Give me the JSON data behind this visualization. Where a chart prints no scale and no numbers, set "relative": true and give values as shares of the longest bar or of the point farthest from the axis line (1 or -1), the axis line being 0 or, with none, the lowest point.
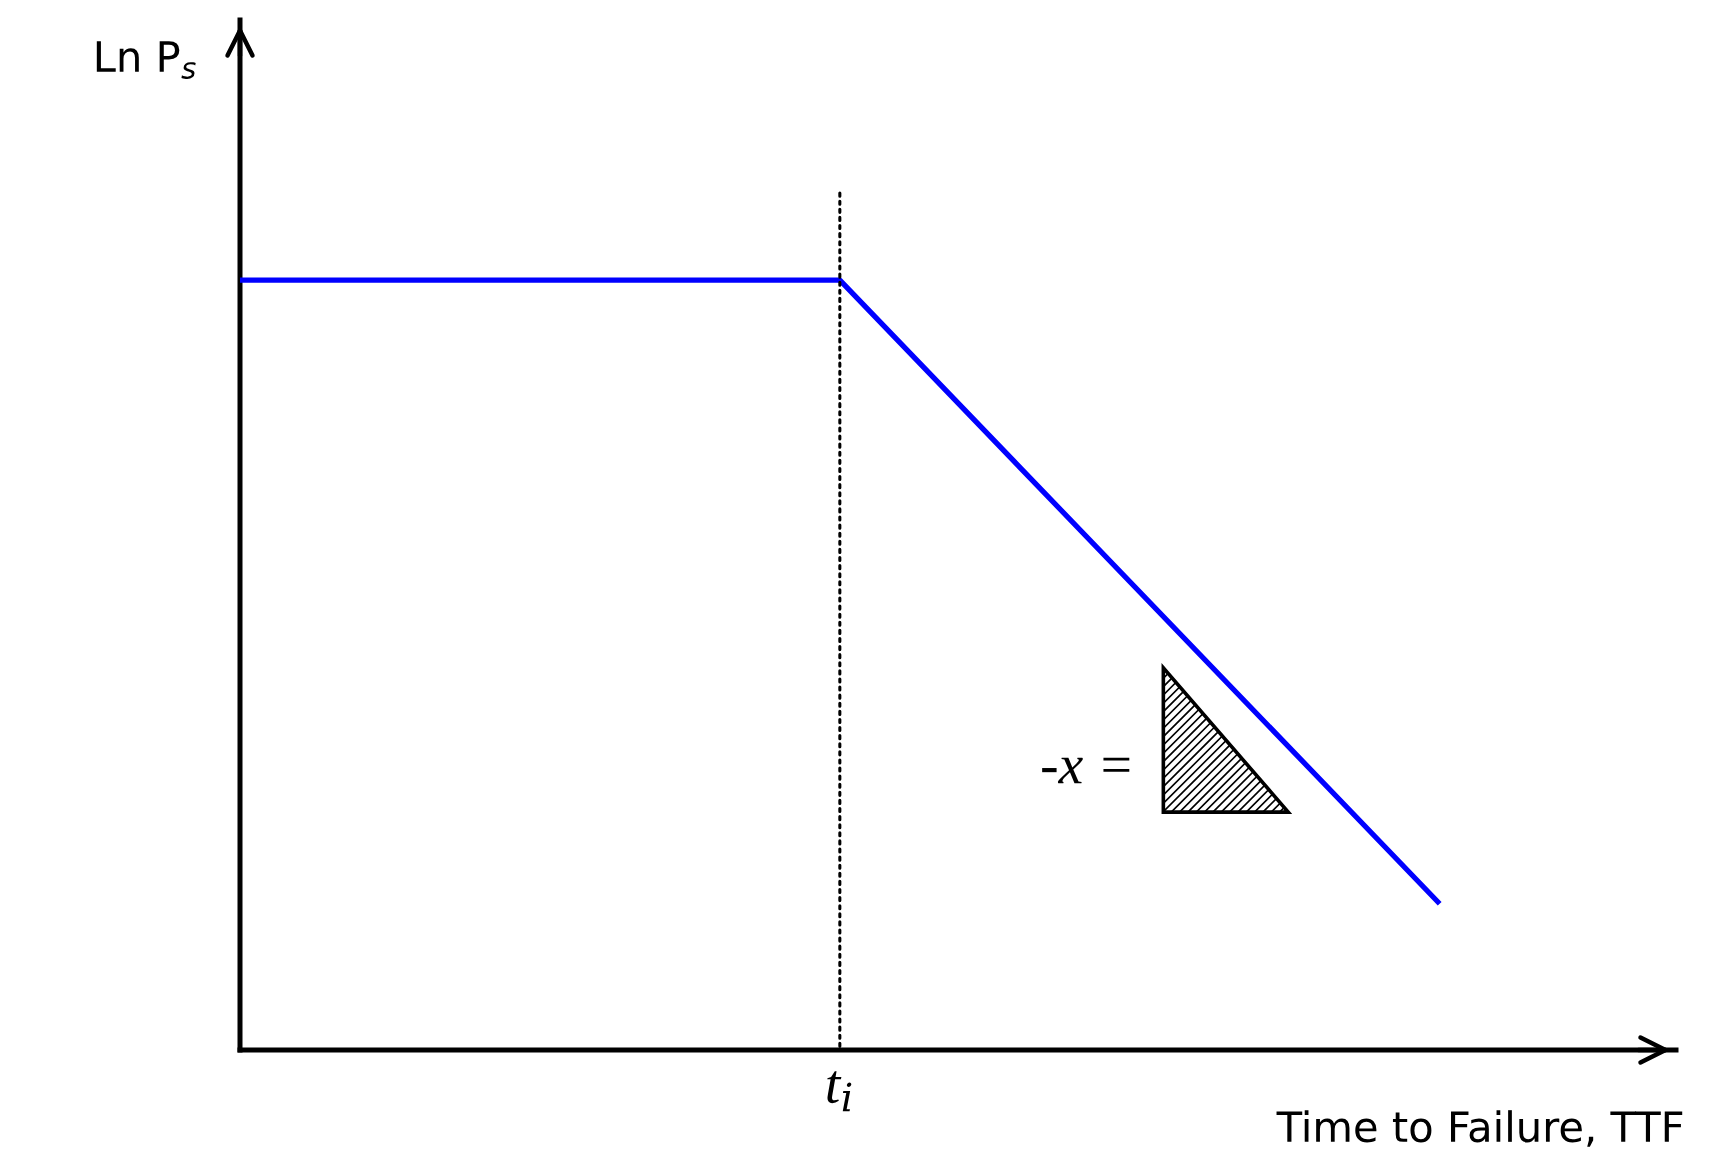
{
  "chart_data": {
    "type": "line",
    "xlabel": "Time to Failure, TTF",
    "ylabel": "Ln P$_{s}$",
    "categories": [
      null,
      null,
      null
    ],
    "relative": true,
    "series": [
      {
        "color": "#0000ff",
        "values": [
          1,
          1,
          0.19
        ]
      }
    ],
    "annotations": [
      "-x =",
      "t$_{i}$"
    ]
  }
}
